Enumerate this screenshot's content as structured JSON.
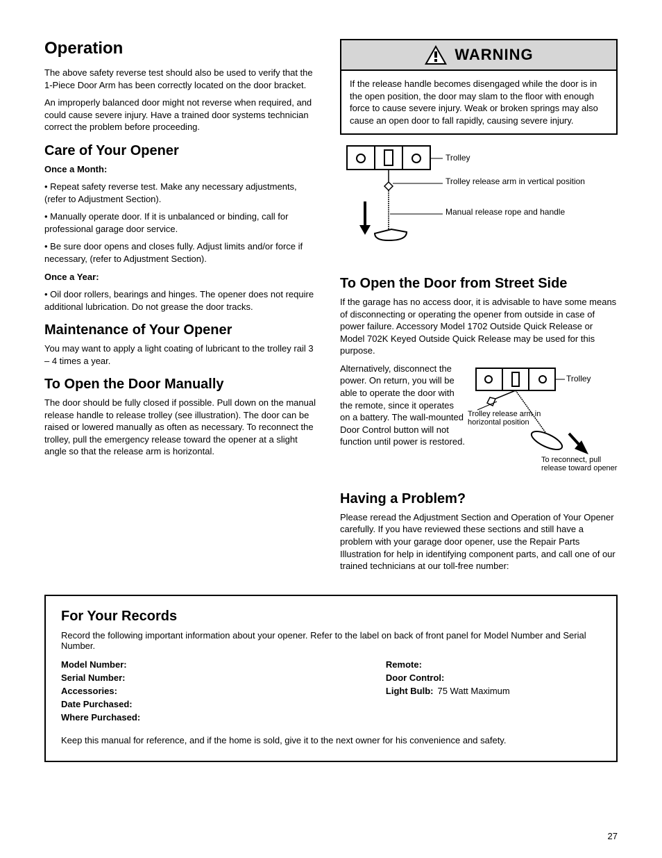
{
  "page_number": "27",
  "left": {
    "title": "Operation",
    "p1": "The above safety reverse test should also be used to verify that the 1-Piece Door Arm has been correctly located on the door bracket.",
    "p2": "An improperly balanced door might not reverse when required, and could cause severe injury. Have a trained door systems technician correct the problem before proceeding.",
    "sec_care": "Care of Your Opener",
    "care_p1": "Once a Month:",
    "care_b1": "Repeat safety reverse test. Make any necessary adjustments, (refer to Adjustment Section).",
    "care_b2": "Manually operate door. If it is unbalanced or binding, call for professional garage door service.",
    "care_b3": "Be sure door opens and closes fully. Adjust limits and/or force if necessary, (refer to Adjustment Section).",
    "care_p2": "Once a Year:",
    "care_b4": "Oil door rollers, bearings and hinges. The opener does not require additional lubrication. Do not grease the door tracks.",
    "sec_maint": "Maintenance of Your Opener",
    "maint_p": "You may want to apply a light coating of lubricant to the trolley rail 3 – 4 times a year.",
    "sec_manual": "To Open the Door Manually",
    "manual_p": "The door should be fully closed if possible. Pull down on the manual release handle to release trolley (see illustration). The door can be raised or lowered manually as often as necessary. To reconnect the trolley, pull the emergency release toward the opener at a slight angle so that the release arm is horizontal."
  },
  "warning": {
    "label": "WARNING",
    "body": "If the release handle becomes disengaged while the door is in the open position, the door may slam to the floor with enough force to cause severe injury. Weak or broken springs may also cause an open door to fall rapidly, causing severe injury."
  },
  "fig1": {
    "trolley": "Trolley",
    "arm_vert": "Trolley release arm in vertical position",
    "rope": "Manual release rope and handle"
  },
  "fig2": {
    "trolley": "Trolley",
    "arm_horiz": "Trolley release arm in horizontal position",
    "reconnect": "To reconnect, pull release toward opener"
  },
  "right": {
    "sec_open": "To Open the Door from Street Side",
    "open_p1": "If the garage has no access door, it is advisable to have some means of disconnecting or operating the opener from outside in case of power failure. Accessory Model 1702 Outside Quick Release or Model 702K Keyed Outside Quick Release may be used for this purpose.",
    "open_p2": "Alternatively, disconnect the power. On return, you will be able to operate the door with the remote, since it operates on a battery. The wall-mounted Door Control button will not function until power is restored.",
    "sec_prob": "Having a Problem?",
    "prob_p": "Please reread the Adjustment Section and Operation of Your Opener carefully. If you have reviewed these sections and still have a problem with your garage door opener, use the Repair Parts Illustration for help in identifying component parts, and call one of our trained technicians at our toll-free number:"
  },
  "ref": {
    "title": "For Your Records",
    "intro": "Record the following important information about your opener. Refer to the label on back of front panel for Model Number and Serial Number.",
    "rows_left": [
      {
        "k": "Model Number:",
        "v": ""
      },
      {
        "k": "Serial Number:",
        "v": ""
      },
      {
        "k": "Accessories:",
        "v": ""
      },
      {
        "k": "Date Purchased:",
        "v": ""
      },
      {
        "k": "Where Purchased:",
        "v": ""
      }
    ],
    "rows_right": [
      {
        "k": "Remote:",
        "v": ""
      },
      {
        "k": "Door Control:",
        "v": ""
      },
      {
        "k": "Light Bulb:",
        "v": "75 Watt Maximum"
      }
    ],
    "foot": "Keep this manual for reference, and if the home is sold, give it to the next owner for his convenience and safety."
  }
}
